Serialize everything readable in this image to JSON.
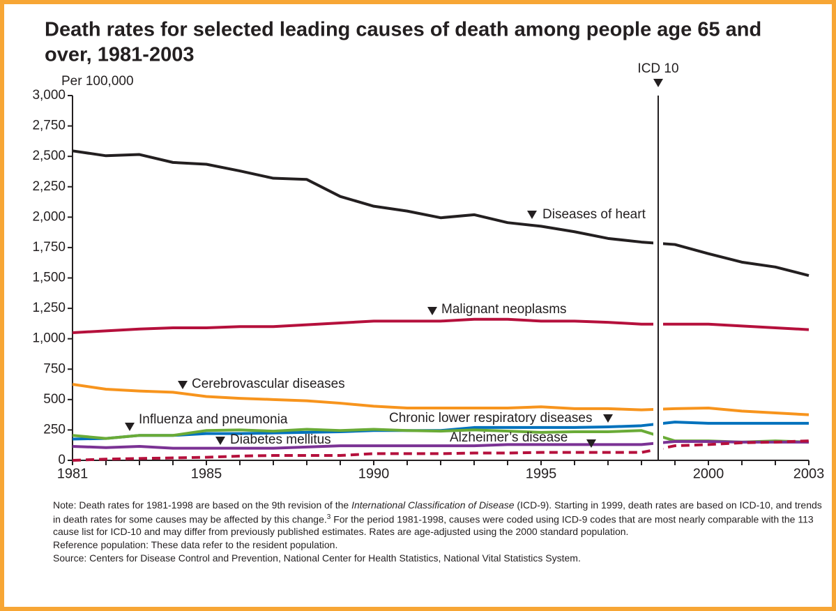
{
  "chart_data": {
    "type": "line",
    "title": "Death rates for selected leading causes of death among people age 65 and over, 1981-2003",
    "y_label": "Per 100,000",
    "x": [
      1981,
      1982,
      1983,
      1984,
      1985,
      1986,
      1987,
      1988,
      1989,
      1990,
      1991,
      1992,
      1993,
      1994,
      1995,
      1996,
      1997,
      1998,
      1999,
      2000,
      2001,
      2002,
      2003
    ],
    "xlim": [
      1981,
      2003
    ],
    "xticks": [
      1981,
      1985,
      1990,
      1995,
      2000,
      2003
    ],
    "ylim": [
      0,
      3000
    ],
    "yticks": [
      {
        "value": 0,
        "label": "0"
      },
      {
        "value": 250,
        "label": "250"
      },
      {
        "value": 500,
        "label": "500"
      },
      {
        "value": 750,
        "label": "750"
      },
      {
        "value": 1000,
        "label": "1,000"
      },
      {
        "value": 1250,
        "label": "1,250"
      },
      {
        "value": 1500,
        "label": "1,500"
      },
      {
        "value": 1750,
        "label": "1,750"
      },
      {
        "value": 2000,
        "label": "2,000"
      },
      {
        "value": 2250,
        "label": "2,250"
      },
      {
        "value": 2500,
        "label": "2,500"
      },
      {
        "value": 2750,
        "label": "2,750"
      },
      {
        "value": 3000,
        "label": "3,000"
      }
    ],
    "annotation": {
      "text": "ICD 10",
      "x": 1998.5
    },
    "series": [
      {
        "name": "Diseases of heart",
        "color": "#231f20",
        "values": [
          2545,
          2505,
          2515,
          2450,
          2435,
          2380,
          2320,
          2310,
          2170,
          2090,
          2050,
          1995,
          2020,
          1955,
          1925,
          1880,
          1825,
          1795,
          1775,
          1700,
          1630,
          1590,
          1520
        ]
      },
      {
        "name": "Malignant neoplasms",
        "color": "#b5103c",
        "values": [
          1050,
          1065,
          1080,
          1090,
          1090,
          1100,
          1100,
          1115,
          1130,
          1145,
          1145,
          1145,
          1160,
          1160,
          1145,
          1145,
          1135,
          1120,
          1120,
          1120,
          1105,
          1090,
          1075
        ]
      },
      {
        "name": "Cerebrovascular diseases",
        "color": "#f7941d",
        "values": [
          625,
          585,
          570,
          560,
          525,
          510,
          500,
          490,
          470,
          445,
          430,
          430,
          430,
          430,
          440,
          425,
          425,
          415,
          425,
          430,
          405,
          390,
          375
        ]
      },
      {
        "name": "Chronic lower respiratory diseases",
        "color": "#0071bc",
        "values": [
          175,
          180,
          205,
          205,
          220,
          220,
          225,
          230,
          235,
          245,
          245,
          245,
          270,
          270,
          270,
          270,
          275,
          285,
          315,
          305,
          305,
          305,
          305
        ]
      },
      {
        "name": "Influenza and pneumonia",
        "color": "#6aab37",
        "values": [
          205,
          180,
          205,
          205,
          245,
          250,
          240,
          255,
          245,
          255,
          245,
          240,
          250,
          240,
          230,
          235,
          235,
          245,
          160,
          160,
          150,
          160,
          150
        ]
      },
      {
        "name": "Diabetes mellitus",
        "color": "#7b3294",
        "values": [
          115,
          105,
          115,
          100,
          100,
          100,
          100,
          110,
          120,
          120,
          120,
          120,
          120,
          130,
          130,
          130,
          130,
          130,
          155,
          155,
          150,
          150,
          150
        ]
      },
      {
        "name": "Alzheimer’s disease",
        "color": "#b5103c",
        "dashed": true,
        "values": [
          0,
          10,
          15,
          20,
          25,
          35,
          40,
          40,
          40,
          55,
          55,
          55,
          60,
          60,
          65,
          65,
          65,
          65,
          120,
          130,
          145,
          150,
          160
        ]
      }
    ],
    "note": {
      "lead": "Note:  Death rates for 1981-1998 are based on the 9th revision of the ",
      "italic": "International Classification of Disease",
      "middle": " (ICD-9).  Starting in 1999, death rates are based on ICD-10, and trends in death rates for some causes may be affected by this change.",
      "footnote": "3",
      "tail": "  For the period 1981-1998, causes were coded using ICD-9 codes that are most nearly comparable with the 113 cause list for ICD-10 and may differ from previously published estimates.  Rates are age-adjusted using the 2000 standard population."
    },
    "reference": "Reference population: These data refer to the resident population.",
    "source": "Source:  Centers for Disease Control and Prevention,  National Center for Health Statistics, National Vital Statistics System."
  }
}
